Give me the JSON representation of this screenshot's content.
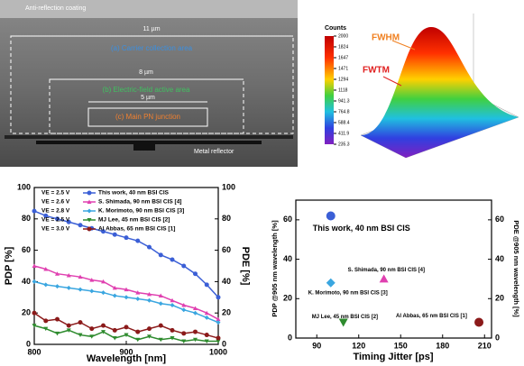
{
  "sem_image": {
    "labels": {
      "coating": "Anti-reflection coating",
      "width_a": "11 µm",
      "area_a": "(a) Carrier collection area",
      "width_b": "8 µm",
      "area_b": "(b) Electric-field active area",
      "width_c": "5 µm",
      "area_c": "(c) Main PN junction",
      "reflector": "Metal reflector"
    }
  },
  "chart_data": [
    {
      "type": "surface",
      "colorbar_title": "Counts",
      "colorbar_lim": [
        235.3,
        2000
      ],
      "colorbar_ticks": [
        2000,
        1824,
        1647,
        1471,
        1294,
        1118,
        941.3,
        764.8,
        588.4,
        411.9,
        235.3
      ],
      "annotations": [
        "FWHM",
        "FWTM"
      ]
    },
    {
      "type": "line",
      "x_label": "Wavelength [nm]",
      "y_label": "PDP [%]",
      "y2_label": "PDE [%]",
      "xlim": [
        800,
        1000
      ],
      "xticks": [
        800,
        900,
        1000
      ],
      "ylim": [
        0,
        100
      ],
      "yticks": [
        0,
        20,
        40,
        60,
        80,
        100
      ],
      "y2lim": [
        0,
        100
      ],
      "y2ticks": [
        0,
        20,
        40,
        60,
        80,
        100
      ],
      "x": [
        800,
        812.5,
        825,
        837.5,
        850,
        862.5,
        875,
        887.5,
        900,
        912.5,
        925,
        937.5,
        950,
        962.5,
        975,
        987.5,
        1000
      ],
      "series": [
        {
          "name": "This work, 40 nm BSI CIS",
          "voltage": "VE = 2.5 V",
          "color": "#3b5fd6",
          "marker": "circle",
          "values": [
            85,
            82,
            80,
            78,
            76,
            74,
            72,
            70,
            68,
            66,
            62,
            57,
            54,
            50,
            45,
            38,
            30
          ]
        },
        {
          "name": "S. Shimada, 90 nm BSI CIS [4]",
          "voltage": "VE = 2.6 V",
          "color": "#e040b0",
          "marker": "triangle",
          "values": [
            50,
            48,
            45,
            44,
            43,
            41,
            40,
            36,
            35,
            33,
            32,
            31,
            28,
            25,
            23,
            20,
            16
          ]
        },
        {
          "name": "K. Morimoto, 90 nm BSI CIS [3]",
          "voltage": "VE = 2.8 V",
          "color": "#3aa6e0",
          "marker": "diamond",
          "values": [
            40,
            38,
            37,
            36,
            35,
            34,
            33,
            31,
            30,
            29,
            28,
            26,
            25,
            22,
            20,
            17,
            14
          ]
        },
        {
          "name": "MJ Lee, 45 nm BSI CIS [2]",
          "voltage": "VE = 2.5 V",
          "color": "#2e8b2e",
          "marker": "triangle-down",
          "values": [
            12,
            10,
            7,
            9,
            6,
            5,
            8,
            4,
            6,
            3,
            5,
            3,
            4,
            2,
            3,
            2,
            2
          ]
        },
        {
          "name": "Al Abbas, 65 nm BSI CIS [1]",
          "voltage": "VE = 3.0 V",
          "color": "#8b1a1a",
          "marker": "circle",
          "values": [
            20,
            15,
            16,
            12,
            14,
            10,
            12,
            9,
            11,
            8,
            10,
            12,
            9,
            7,
            8,
            6,
            4
          ]
        }
      ]
    },
    {
      "type": "scatter",
      "x_label": "Timing Jitter [ps]",
      "y_label": "PDP @905 nm wavelength [%]",
      "y2_label": "PDE @905 nm wavelength [%]",
      "xlim": [
        75,
        215
      ],
      "xticks": [
        90,
        120,
        150,
        180,
        210
      ],
      "ylim": [
        0,
        70
      ],
      "yticks": [
        0,
        20,
        40,
        60
      ],
      "y2lim": [
        0,
        70
      ],
      "y2ticks": [
        0,
        20,
        40,
        60
      ],
      "points": [
        {
          "label": "This work, 40 nm BSI CIS",
          "x": 100,
          "y": 62,
          "color": "#3b5fd6",
          "marker": "circle"
        },
        {
          "label": "S. Shimada, 90 nm BSI CIS [4]",
          "x": 138,
          "y": 30,
          "color": "#e040b0",
          "marker": "triangle"
        },
        {
          "label": "K. Morimoto, 90 nm BSI CIS [3]",
          "x": 100,
          "y": 28,
          "color": "#3aa6e0",
          "marker": "diamond"
        },
        {
          "label": "MJ Lee, 45 nm BSI CIS [2]",
          "x": 109,
          "y": 8,
          "color": "#2e8b2e",
          "marker": "triangle-down"
        },
        {
          "label": "Al Abbas, 65 nm BSI CIS [1]",
          "x": 206,
          "y": 8,
          "color": "#8b1a1a",
          "marker": "circle"
        }
      ]
    }
  ]
}
